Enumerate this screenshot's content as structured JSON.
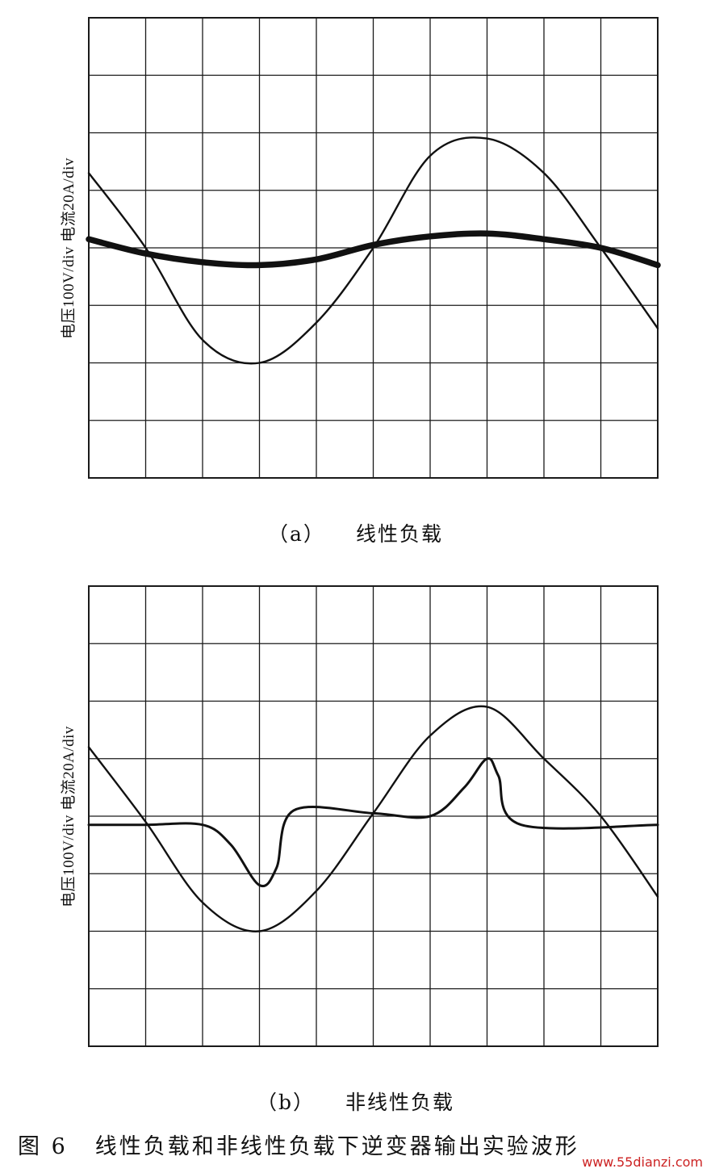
{
  "figure": {
    "caption_number": "图 6",
    "caption_text": "线性负载和非线性负载下逆变器输出实验波形",
    "watermark": "www.55dianzi.com"
  },
  "colors": {
    "grid": "#1a1a1a",
    "trace": "#111111",
    "background": "#ffffff"
  },
  "chart_data": [
    {
      "type": "line",
      "label_tag": "（a）",
      "label_title": "线性负载",
      "ylabel": "电压100V/div  电流20A/div",
      "grid": true,
      "divisions": {
        "x": 10,
        "y": 8
      },
      "xlim": [
        0,
        10
      ],
      "ylim": [
        -4,
        4
      ],
      "series": [
        {
          "x": [
            0,
            1,
            2,
            3,
            4,
            5,
            6,
            7,
            8,
            9,
            10
          ],
          "y": [
            1.3,
            0.0,
            -1.6,
            -2.0,
            -1.3,
            0.0,
            1.6,
            1.9,
            1.3,
            0.0,
            -1.4
          ]
        },
        {
          "x": [
            0,
            1,
            2,
            3,
            4,
            5,
            6,
            7,
            8,
            9,
            10
          ],
          "y": [
            0.15,
            -0.1,
            -0.25,
            -0.3,
            -0.2,
            0.05,
            0.2,
            0.25,
            0.15,
            0.0,
            -0.3
          ]
        }
      ]
    },
    {
      "type": "line",
      "label_tag": "（b）",
      "label_title": "非线性负载",
      "ylabel": "电压100V/div  电流20A/div",
      "grid": true,
      "divisions": {
        "x": 10,
        "y": 8
      },
      "xlim": [
        0,
        10
      ],
      "ylim": [
        -4,
        4
      ],
      "series": [
        {
          "x": [
            0,
            1,
            2,
            3,
            4,
            5,
            6,
            7,
            8,
            9,
            10
          ],
          "y": [
            1.2,
            -0.1,
            -1.5,
            -2.0,
            -1.3,
            0.05,
            1.4,
            1.9,
            1.0,
            0.0,
            -1.4
          ]
        },
        {
          "x": [
            0,
            1,
            2,
            2.5,
            3,
            3.3,
            3.6,
            5,
            6,
            6.6,
            7,
            7.2,
            7.6,
            10
          ],
          "y": [
            -0.15,
            -0.15,
            -0.15,
            -0.5,
            -1.2,
            -0.9,
            0.1,
            0.05,
            0.0,
            0.5,
            1.0,
            0.7,
            -0.15,
            -0.15
          ]
        }
      ]
    }
  ]
}
